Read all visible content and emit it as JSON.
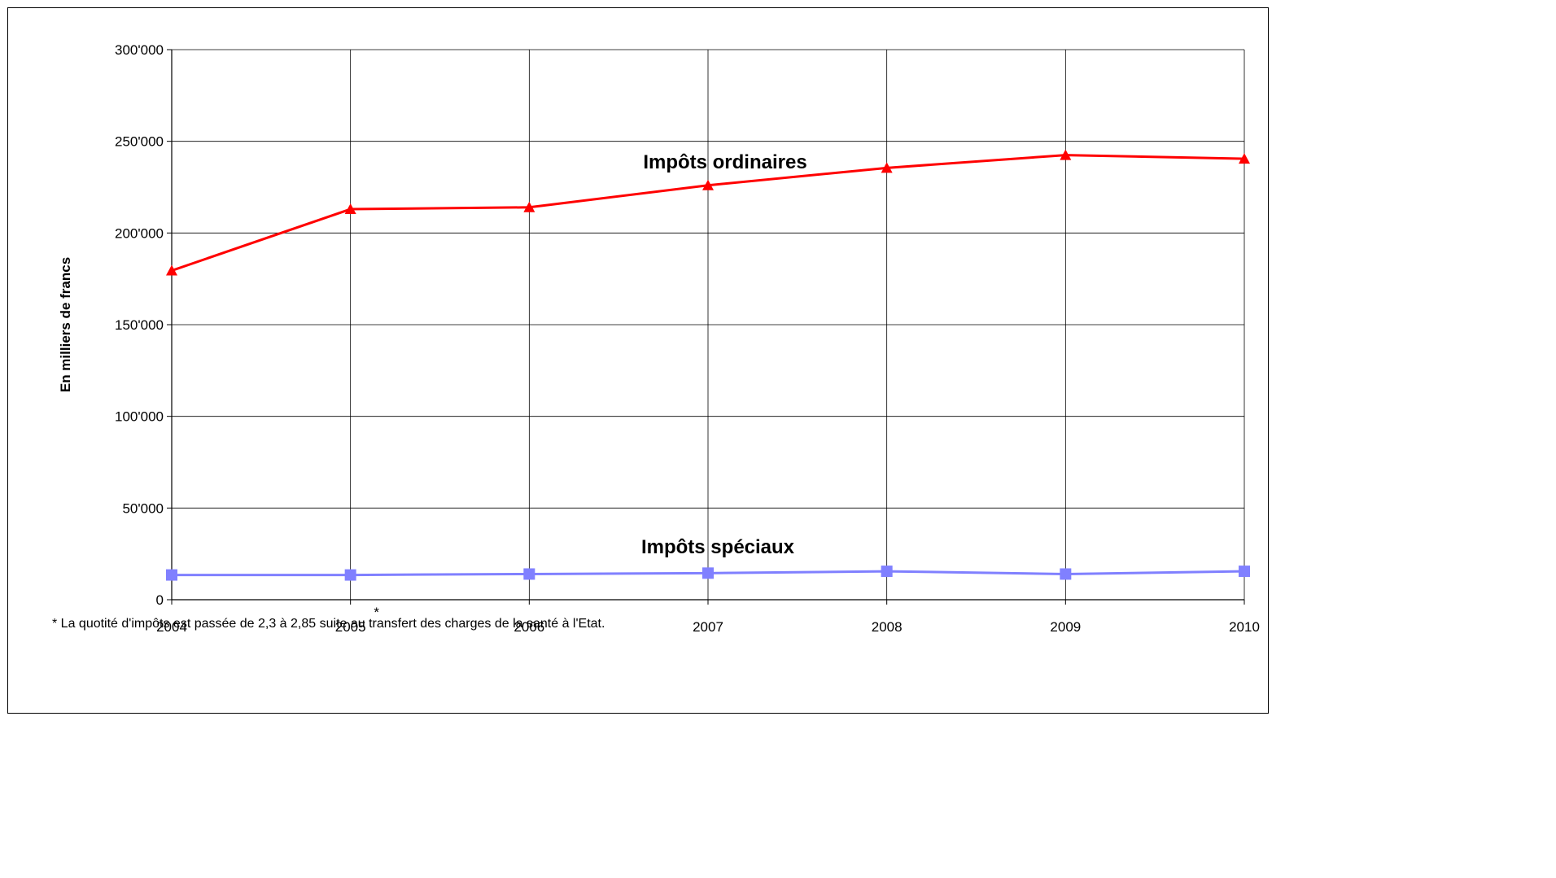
{
  "chart_data": {
    "type": "line",
    "title": "",
    "xlabel": "",
    "ylabel": "En milliers de francs",
    "x": [
      "2004",
      "2005",
      "2006",
      "2007",
      "2008",
      "2009",
      "2010"
    ],
    "x_annotation": {
      "category": "2005",
      "mark": "*"
    },
    "yticks": [
      "0",
      "50'000",
      "100'000",
      "150'000",
      "200'000",
      "250'000",
      "300'000"
    ],
    "ylim": [
      0,
      300000
    ],
    "grid": true,
    "series": [
      {
        "name": "Impôts ordinaires",
        "color": "#ff0000",
        "marker": "triangle",
        "values": [
          179500,
          213000,
          214000,
          226000,
          235500,
          242500,
          240500
        ]
      },
      {
        "name": "Impôts spéciaux",
        "color": "#8080ff",
        "marker": "square",
        "values": [
          13500,
          13500,
          14000,
          14500,
          15500,
          14000,
          15500
        ]
      }
    ],
    "footnote": "* La quotité d'impôts est passée de 2,3 à 2,85 suite au transfert des charges de la santé à l'Etat."
  }
}
